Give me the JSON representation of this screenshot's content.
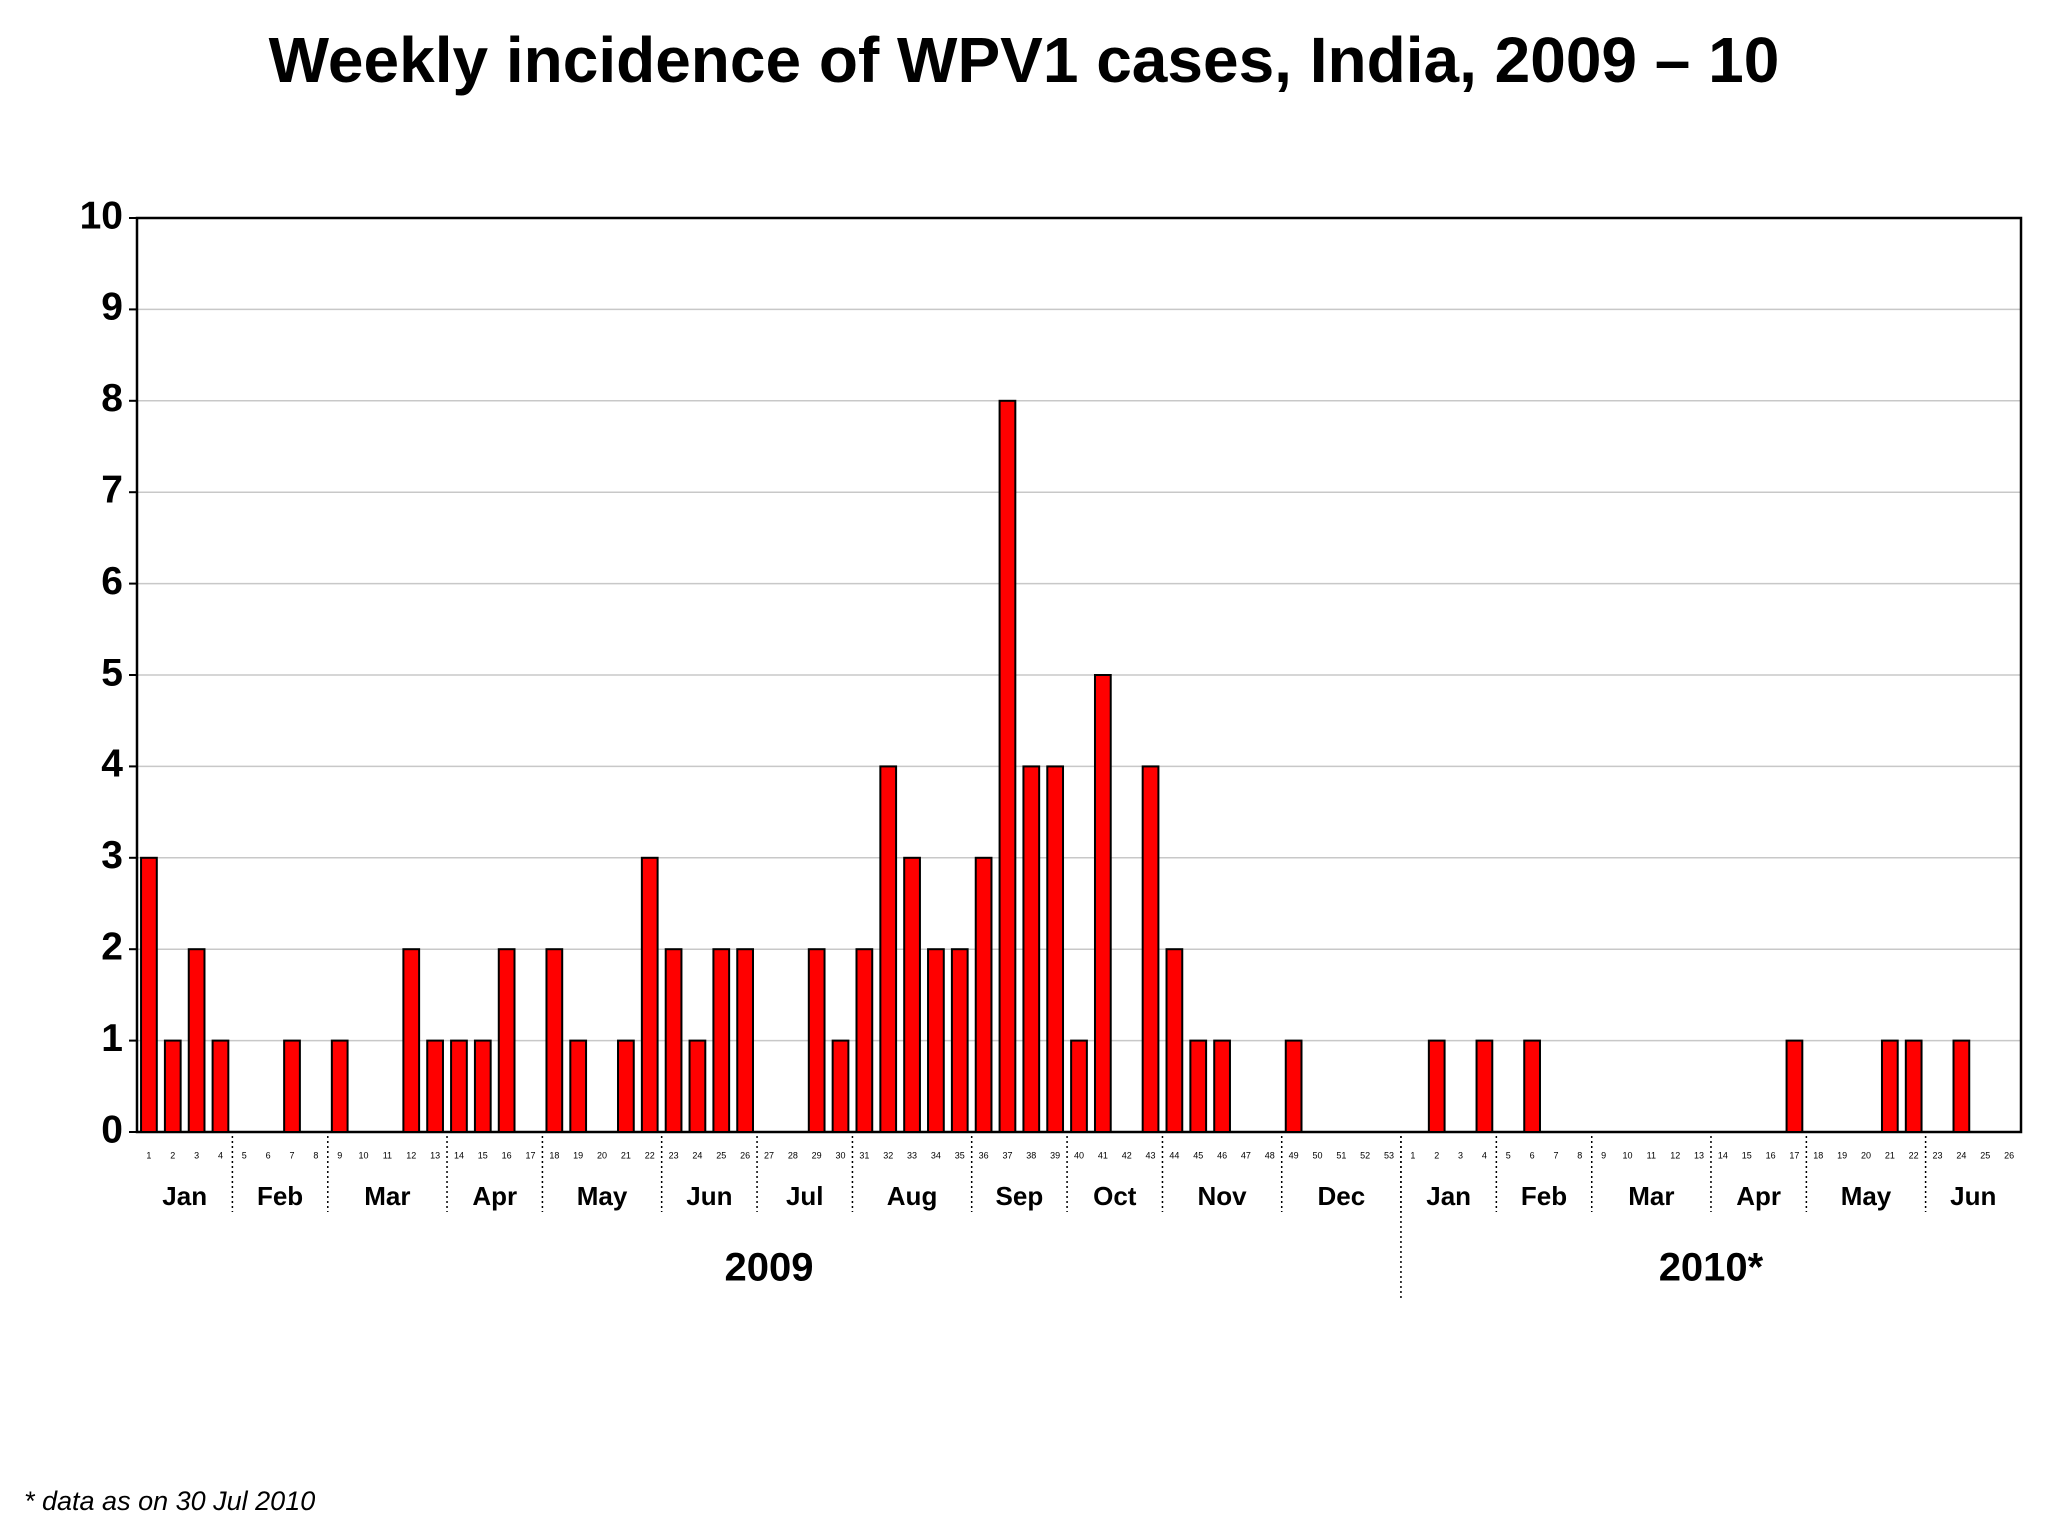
{
  "chart_data": {
    "type": "bar",
    "title": "Weekly incidence of WPV1 cases, India, 2009 – 10",
    "categories": [
      1,
      2,
      3,
      4,
      5,
      6,
      7,
      8,
      9,
      10,
      11,
      12,
      13,
      14,
      15,
      16,
      17,
      18,
      19,
      20,
      21,
      22,
      23,
      24,
      25,
      26,
      27,
      28,
      29,
      30,
      31,
      32,
      33,
      34,
      35,
      36,
      37,
      38,
      39,
      40,
      41,
      42,
      43,
      44,
      45,
      46,
      47,
      48,
      49,
      50,
      51,
      52,
      53,
      1,
      2,
      3,
      4,
      5,
      6,
      7,
      8,
      9,
      10,
      11,
      12,
      13,
      14,
      15,
      16,
      17,
      18,
      19,
      20,
      21,
      22,
      23,
      24,
      25,
      26
    ],
    "values": [
      3,
      1,
      2,
      1,
      0,
      0,
      1,
      0,
      1,
      0,
      0,
      2,
      1,
      1,
      1,
      2,
      0,
      2,
      1,
      0,
      1,
      3,
      2,
      1,
      2,
      2,
      0,
      0,
      2,
      1,
      2,
      4,
      3,
      2,
      2,
      3,
      8,
      4,
      4,
      1,
      5,
      0,
      4,
      2,
      1,
      1,
      0,
      0,
      1,
      0,
      0,
      0,
      0,
      0,
      1,
      0,
      1,
      0,
      1,
      0,
      0,
      0,
      0,
      0,
      0,
      0,
      0,
      0,
      0,
      1,
      0,
      0,
      0,
      1,
      1,
      0,
      1,
      0,
      0
    ],
    "color": "#ff0000",
    "ylim": [
      0,
      10
    ],
    "yticks": [
      0,
      1,
      2,
      3,
      4,
      5,
      6,
      7,
      8,
      9,
      10
    ],
    "grid": true,
    "months": [
      {
        "label": "Jan",
        "weeks": 4
      },
      {
        "label": "Feb",
        "weeks": 4
      },
      {
        "label": "Mar",
        "weeks": 5
      },
      {
        "label": "Apr",
        "weeks": 4
      },
      {
        "label": "May",
        "weeks": 5
      },
      {
        "label": "Jun",
        "weeks": 4
      },
      {
        "label": "Jul",
        "weeks": 4
      },
      {
        "label": "Aug",
        "weeks": 5
      },
      {
        "label": "Sep",
        "weeks": 4
      },
      {
        "label": "Oct",
        "weeks": 4
      },
      {
        "label": "Nov",
        "weeks": 5
      },
      {
        "label": "Dec",
        "weeks": 5
      },
      {
        "label": "Jan",
        "weeks": 4
      },
      {
        "label": "Feb",
        "weeks": 4
      },
      {
        "label": "Mar",
        "weeks": 5
      },
      {
        "label": "Apr",
        "weeks": 4
      },
      {
        "label": "May",
        "weeks": 5
      },
      {
        "label": "Jun",
        "weeks": 4
      }
    ],
    "years": [
      {
        "label": "2009",
        "weeks": 53
      },
      {
        "label": "2010*",
        "weeks": 26
      }
    ],
    "footnote": "* data as on 30 Jul 2010"
  }
}
